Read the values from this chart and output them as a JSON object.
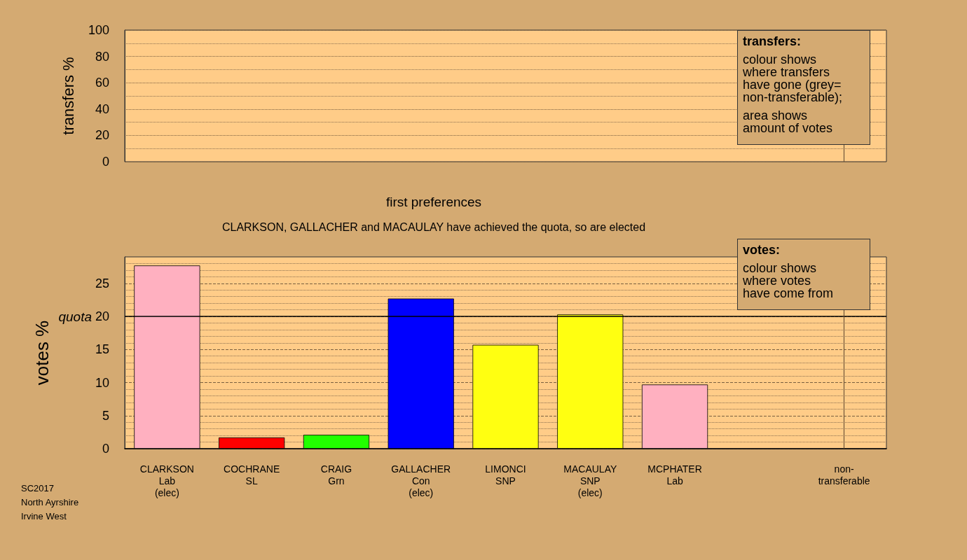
{
  "chart_data": [
    {
      "type": "bar",
      "categories": [
        "CLARKSON\nLab\n(elec)",
        "COCHRANE\nSL",
        "CRAIG\nGrn",
        "GALLACHER\nCon\n(elec)",
        "LIMONCI\nSNP",
        "MACAULAY\nSNP\n(elec)",
        "MCPHATER\nLab",
        null,
        "non-\ntransferable"
      ],
      "values": [
        null,
        null,
        null,
        null,
        null,
        null,
        null,
        null,
        null
      ],
      "ylabel": "transfers %",
      "ylim": [
        0,
        100
      ],
      "yticks": [
        0,
        {
          "value": 10,
          "label": null
        },
        20,
        {
          "value": 30,
          "label": null
        },
        40,
        {
          "value": 50,
          "label": null
        },
        60,
        {
          "value": 70,
          "label": null
        },
        80,
        {
          "value": 90,
          "label": null
        },
        100
      ],
      "grid": true,
      "tick_labels": "y",
      "ref_lines": [
        {
          "axis": "x",
          "value": "non-\ntransferable",
          "color": "#5a4630"
        }
      ],
      "annotations": [
        "transfers:",
        "colour shows\nwhere transfers\nhave gone (grey=\nnon-transferable);",
        "area shows\namount of votes"
      ]
    },
    {
      "type": "bar",
      "title": "first preferences",
      "subtitle": "CLARKSON, GALLACHER and MACAULAY have achieved the quota, so are elected",
      "categories": [
        "CLARKSON\nLab\n(elec)",
        "COCHRANE\nSL",
        "CRAIG\nGrn",
        "GALLACHER\nCon\n(elec)",
        "LIMONCI\nSNP",
        "MACAULAY\nSNP\n(elec)",
        "MCPHATER\nLab",
        null,
        "non-\ntransferable"
      ],
      "values": [
        27.7,
        1.7,
        2.1,
        22.7,
        15.7,
        20.3,
        9.7,
        null,
        null
      ],
      "colors": [
        "#ffb0c0",
        "#ff0000",
        "#22ff00",
        "#0000ff",
        "#ffff11",
        "#ffff11",
        "#ffb0c0",
        "#cccccc",
        "#cccccc"
      ],
      "ylabel": "votes %",
      "ylim": [
        0,
        29
      ],
      "yticks": [
        0,
        {
          "value": 1,
          "label": null
        },
        {
          "value": 2,
          "label": null
        },
        {
          "value": 3,
          "label": null
        },
        {
          "value": 4,
          "label": null
        },
        5,
        {
          "value": 6,
          "label": null
        },
        {
          "value": 7,
          "label": null
        },
        {
          "value": 8,
          "label": null
        },
        {
          "value": 9,
          "label": null
        },
        10,
        {
          "value": 11,
          "label": null
        },
        {
          "value": 12,
          "label": null
        },
        {
          "value": 13,
          "label": null
        },
        {
          "value": 14,
          "label": null
        },
        15,
        {
          "value": 16,
          "label": null
        },
        {
          "value": 17,
          "label": null
        },
        {
          "value": 18,
          "label": null
        },
        {
          "value": 19,
          "label": null
        },
        20,
        {
          "value": 21,
          "label": null
        },
        {
          "value": 22,
          "label": null
        },
        {
          "value": 23,
          "label": null
        },
        {
          "value": 24,
          "label": null
        },
        25,
        {
          "value": 26,
          "label": null
        },
        {
          "value": 27,
          "label": null
        },
        {
          "value": 28,
          "label": null
        }
      ],
      "grid": true,
      "ref_lines": [
        {
          "axis": "y",
          "value": 20,
          "label": "quota",
          "color": "#000000"
        },
        {
          "axis": "x",
          "value": "non-\ntransferable",
          "color": "#5a4630"
        }
      ],
      "annotations": [
        "votes:",
        "colour shows\nwhere votes\nhave come from",
        "SC2017\nNorth Ayrshire\nIrvine West"
      ]
    }
  ]
}
